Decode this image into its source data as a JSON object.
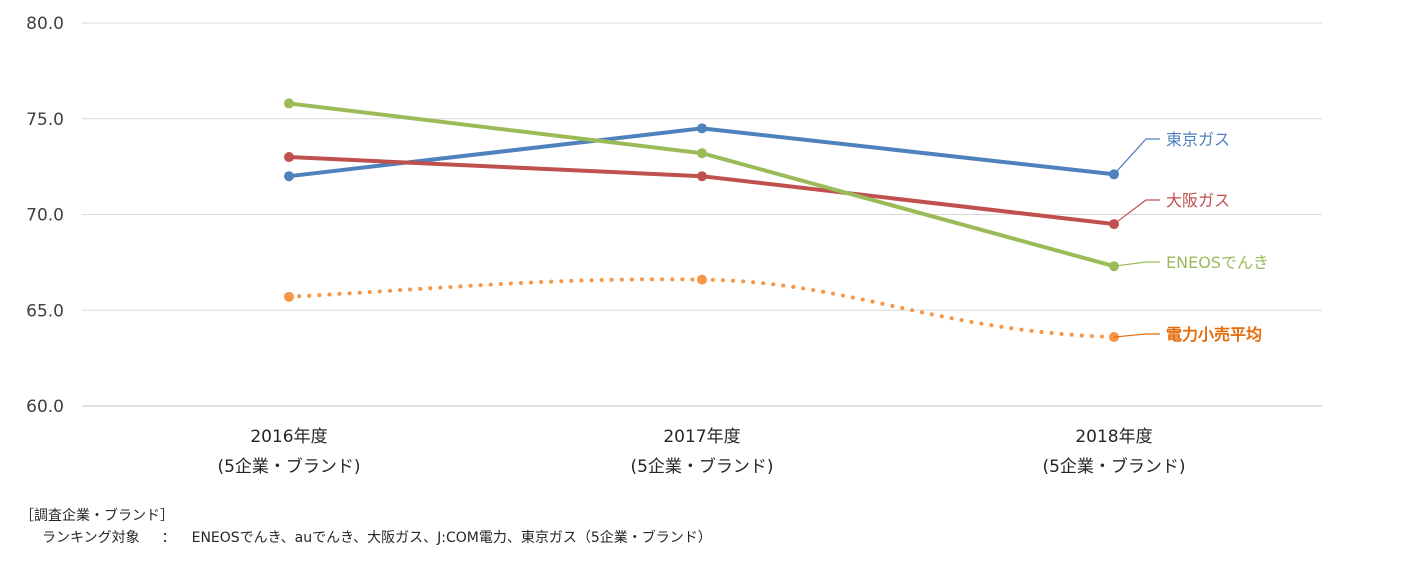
{
  "chart_data": {
    "type": "line",
    "categories": [
      [
        "2016年度",
        "(5企業・ブランド)"
      ],
      [
        "2017年度",
        "(5企業・ブランド)"
      ],
      [
        "2018年度",
        "(5企業・ブランド)"
      ]
    ],
    "ylim": [
      60,
      80
    ],
    "yticks": [
      "80.0",
      "75.0",
      "70.0",
      "65.0",
      "60.0"
    ],
    "ytick_values": [
      80,
      75,
      70,
      65,
      60
    ],
    "grid": true,
    "legend": "right end labels",
    "series": [
      {
        "name": "東京ガス",
        "values": [
          72.0,
          74.5,
          72.1
        ],
        "color": "#4f81bd",
        "style": "solid",
        "bold": false
      },
      {
        "name": "大阪ガス",
        "values": [
          73.0,
          72.0,
          69.5
        ],
        "color": "#c0504d",
        "style": "solid",
        "bold": false
      },
      {
        "name": "ENEOSでんき",
        "values": [
          75.8,
          73.2,
          67.3
        ],
        "color": "#9bbb59",
        "style": "solid",
        "bold": false
      },
      {
        "name": "電力小売平均",
        "values": [
          65.7,
          66.6,
          63.6
        ],
        "color": "#f79646",
        "style": "dotted",
        "bold": true,
        "label_color": "#e46c0a"
      }
    ]
  },
  "footnote": {
    "line1": "［調査企業・ブランド］",
    "line2_label": "ランキング対象",
    "line2_colon": "：",
    "line2_text": "ENEOSでんき、auでんき、大阪ガス、J:COM電力、東京ガス（5企業・ブランド）"
  }
}
